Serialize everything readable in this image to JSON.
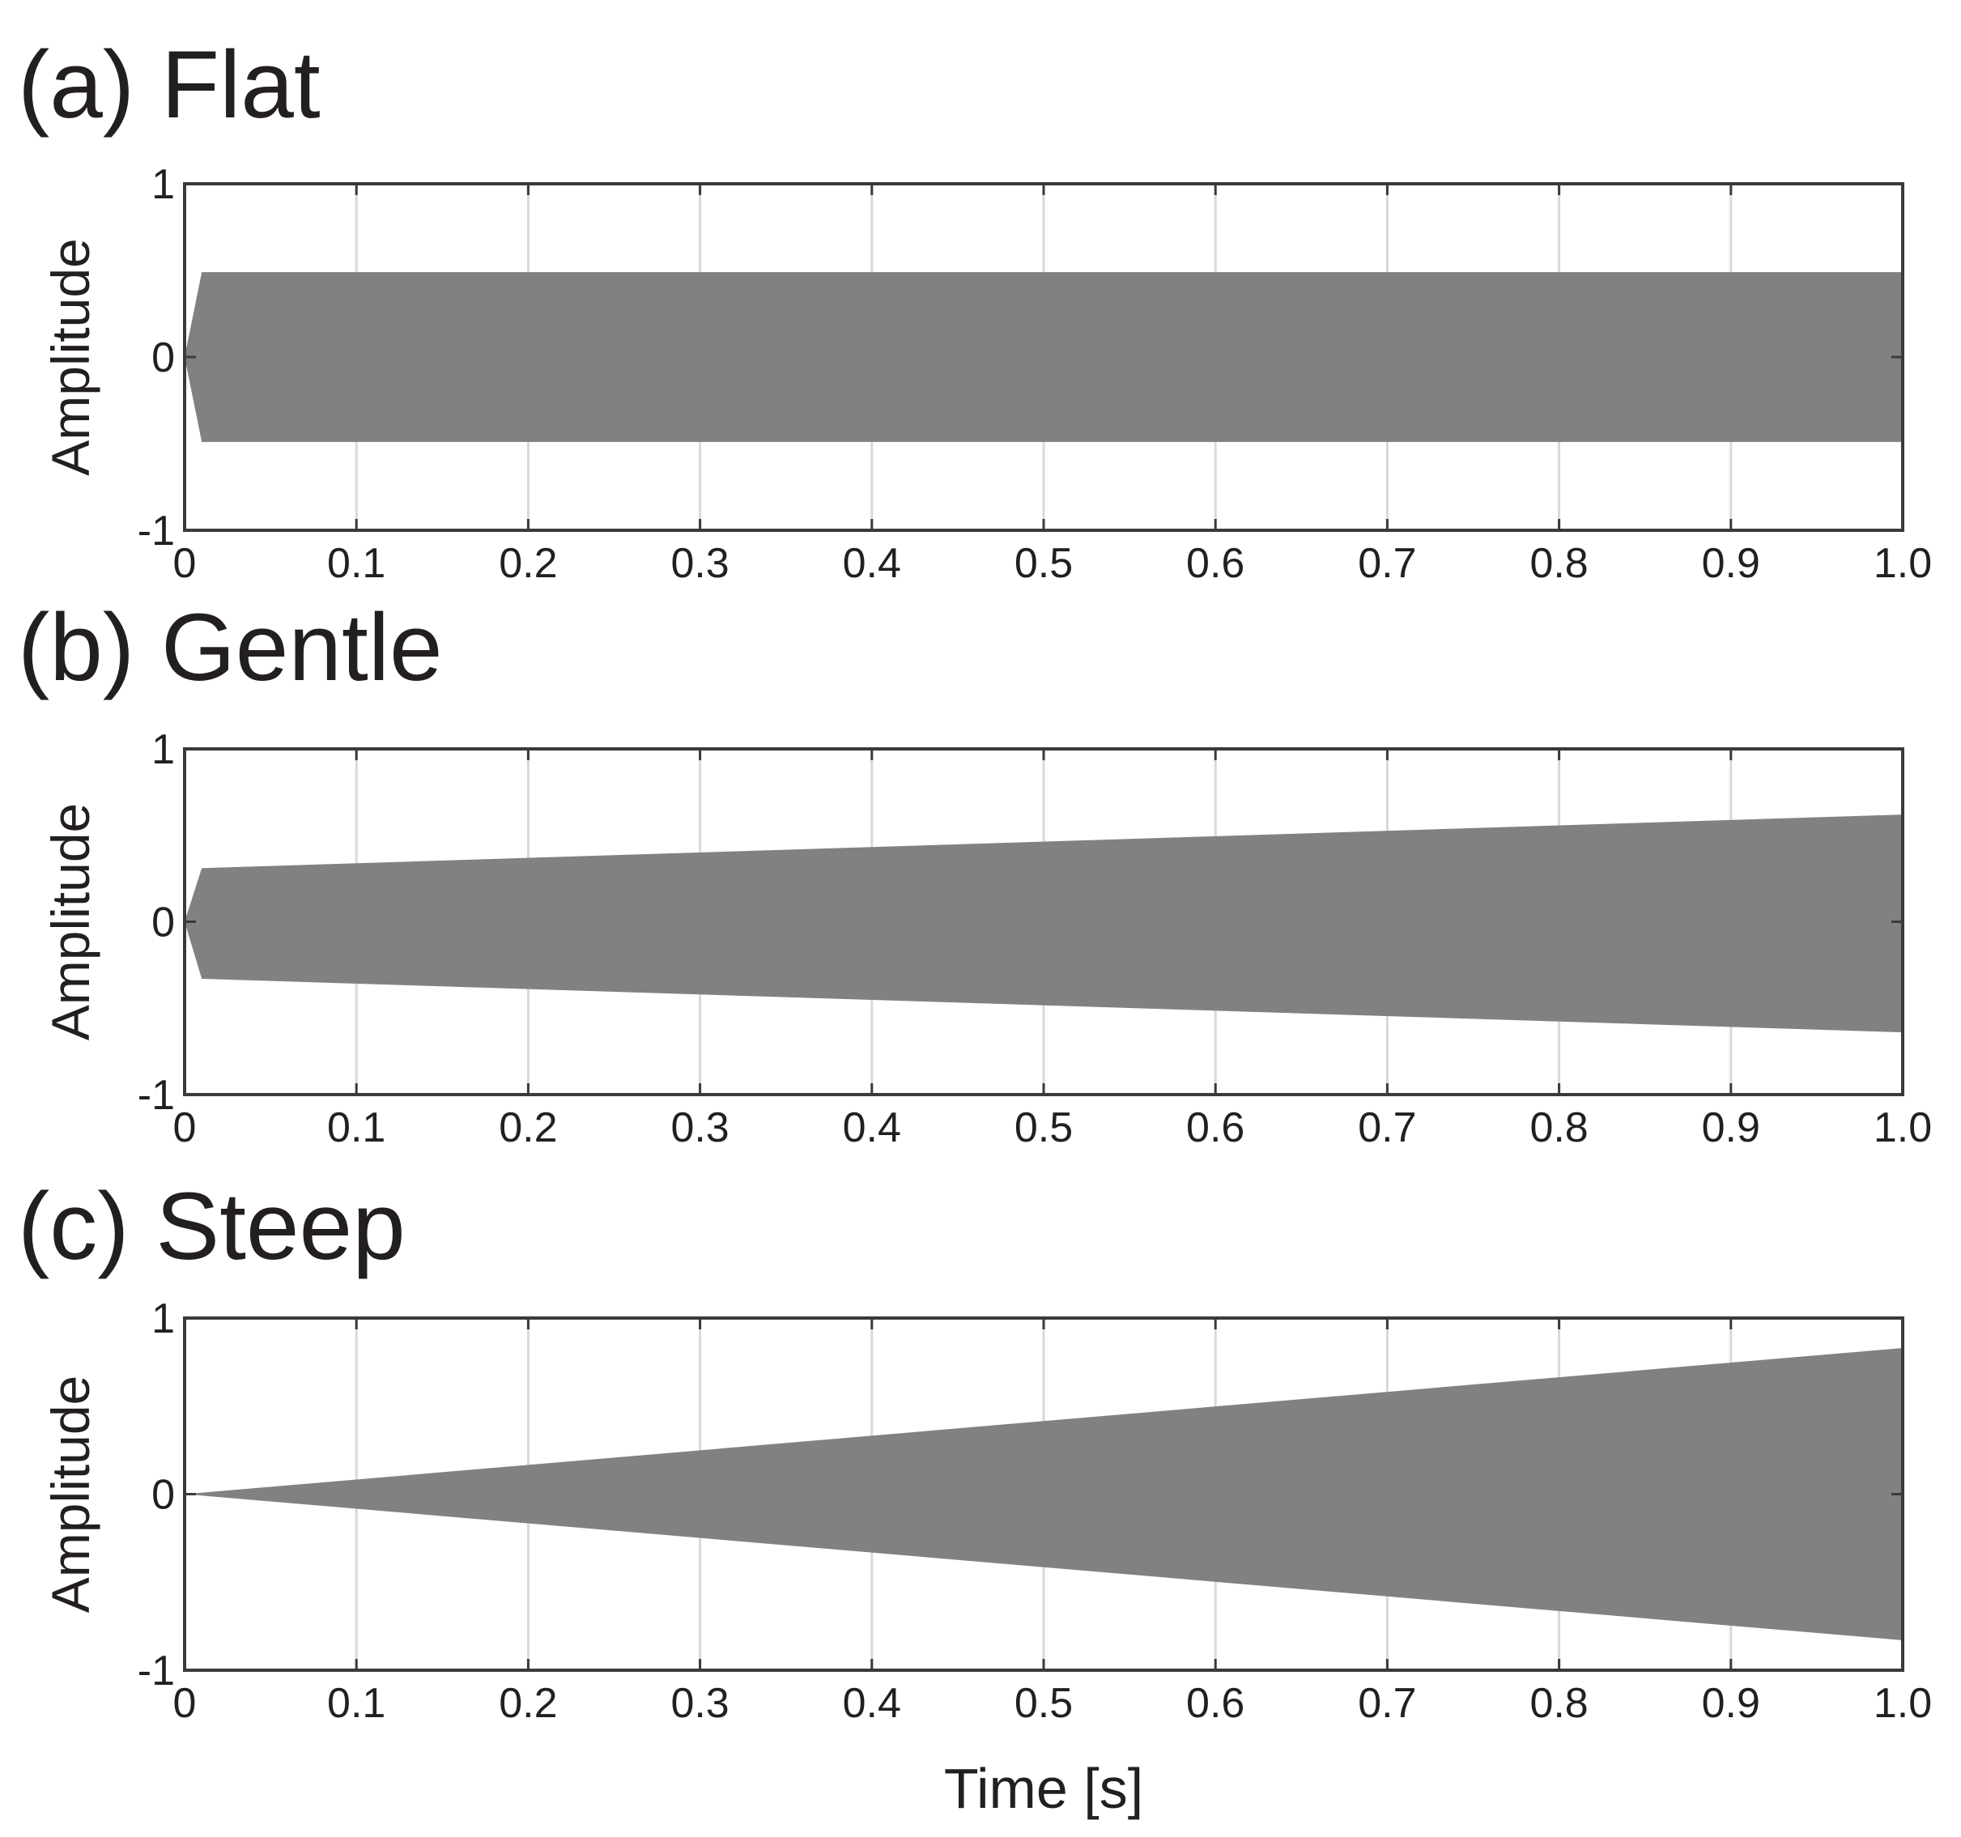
{
  "figure": {
    "xlabel": "Time [s]",
    "color": "#808183",
    "grid": "vertical",
    "panels": [
      {
        "title": "(a) Flat",
        "ylabel": "Amplitude"
      },
      {
        "title": "(b) Gentle",
        "ylabel": "Amplitude"
      },
      {
        "title": "(c) Steep",
        "ylabel": "Amplitude"
      }
    ]
  },
  "chart_data": [
    {
      "type": "area",
      "title": "(a) Flat",
      "xlabel": "",
      "ylabel": "Amplitude",
      "xlim": [
        0,
        1.0
      ],
      "ylim": [
        -1,
        1
      ],
      "xticks": [
        "0",
        "0.1",
        "0.2",
        "0.3",
        "0.4",
        "0.5",
        "0.6",
        "0.7",
        "0.8",
        "0.9",
        "1.0"
      ],
      "yticks": [
        "-1",
        "0",
        "1"
      ],
      "grid": "vertical",
      "envelope": {
        "x": [
          0,
          0.01,
          1.0
        ],
        "upper": [
          0,
          0.49,
          0.49
        ],
        "lower": [
          0,
          -0.49,
          -0.49
        ]
      }
    },
    {
      "type": "area",
      "title": "(b) Gentle",
      "xlabel": "",
      "ylabel": "Amplitude",
      "xlim": [
        0,
        1.0
      ],
      "ylim": [
        -1,
        1
      ],
      "xticks": [
        "0",
        "0.1",
        "0.2",
        "0.3",
        "0.4",
        "0.5",
        "0.6",
        "0.7",
        "0.8",
        "0.9",
        "1.0"
      ],
      "yticks": [
        "-1",
        "0",
        "1"
      ],
      "grid": "vertical",
      "envelope": {
        "x": [
          0,
          0.01,
          1.0
        ],
        "upper": [
          0,
          0.31,
          0.62
        ],
        "lower": [
          0,
          -0.33,
          -0.64
        ]
      }
    },
    {
      "type": "area",
      "title": "(c) Steep",
      "xlabel": "Time [s]",
      "ylabel": "Amplitude",
      "xlim": [
        0,
        1.0
      ],
      "ylim": [
        -1,
        1
      ],
      "xticks": [
        "0",
        "0.1",
        "0.2",
        "0.3",
        "0.4",
        "0.5",
        "0.6",
        "0.7",
        "0.8",
        "0.9",
        "1.0"
      ],
      "yticks": [
        "-1",
        "0",
        "1"
      ],
      "grid": "vertical",
      "envelope": {
        "x": [
          0,
          1.0
        ],
        "upper": [
          0,
          0.83
        ],
        "lower": [
          0,
          -0.83
        ]
      }
    }
  ]
}
